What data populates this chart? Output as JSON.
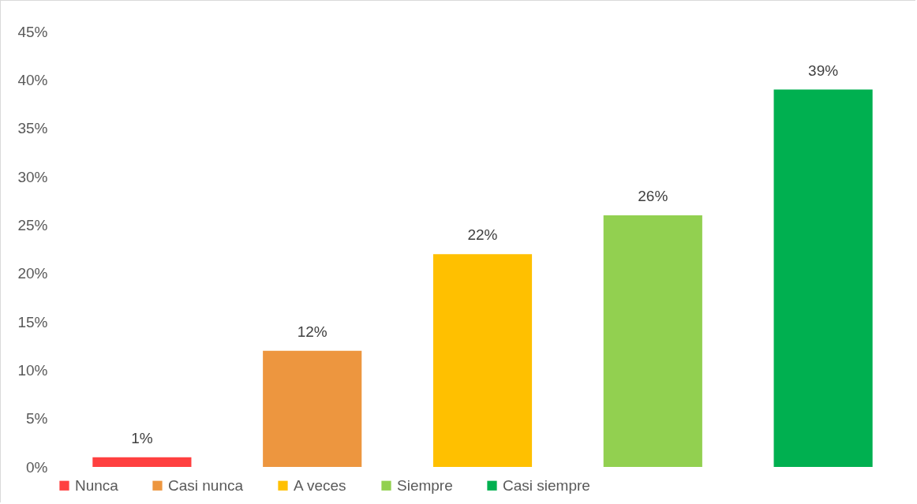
{
  "chart_data": {
    "type": "bar",
    "categories": [
      null,
      null,
      null,
      null,
      null
    ],
    "series": [
      {
        "name": "Nunca",
        "color": "#ff4040",
        "values": [
          1,
          null,
          null,
          null,
          null
        ],
        "value_labels": [
          "1%",
          null,
          null,
          null,
          null
        ]
      },
      {
        "name": "Casi nunca",
        "color": "#ed963f",
        "values": [
          null,
          12,
          null,
          null,
          null
        ],
        "value_labels": [
          null,
          "12%",
          null,
          null,
          null
        ]
      },
      {
        "name": "A veces",
        "color": "#ffc000",
        "values": [
          null,
          null,
          22,
          null,
          null
        ],
        "value_labels": [
          null,
          null,
          "22%",
          null,
          null
        ]
      },
      {
        "name": "Siempre",
        "color": "#92d050",
        "values": [
          null,
          null,
          null,
          26,
          null
        ],
        "value_labels": [
          null,
          null,
          null,
          "26%",
          null
        ]
      },
      {
        "name": "Casi siempre",
        "color": "#00b050",
        "values": [
          null,
          null,
          null,
          null,
          39
        ],
        "value_labels": [
          null,
          null,
          null,
          null,
          "39%"
        ]
      }
    ],
    "ylim": [
      0,
      45
    ],
    "yticks": [
      {
        "value": 0,
        "label": "0%"
      },
      {
        "value": 5,
        "label": "5%"
      },
      {
        "value": 10,
        "label": "10%"
      },
      {
        "value": 15,
        "label": "15%"
      },
      {
        "value": 20,
        "label": "20%"
      },
      {
        "value": 25,
        "label": "25%"
      },
      {
        "value": 30,
        "label": "30%"
      },
      {
        "value": 35,
        "label": "35%"
      },
      {
        "value": 40,
        "label": "40%"
      },
      {
        "value": 45,
        "label": "45%"
      }
    ],
    "stacked": true,
    "tick_labels": "y",
    "legend": "bottom",
    "grid": false
  }
}
